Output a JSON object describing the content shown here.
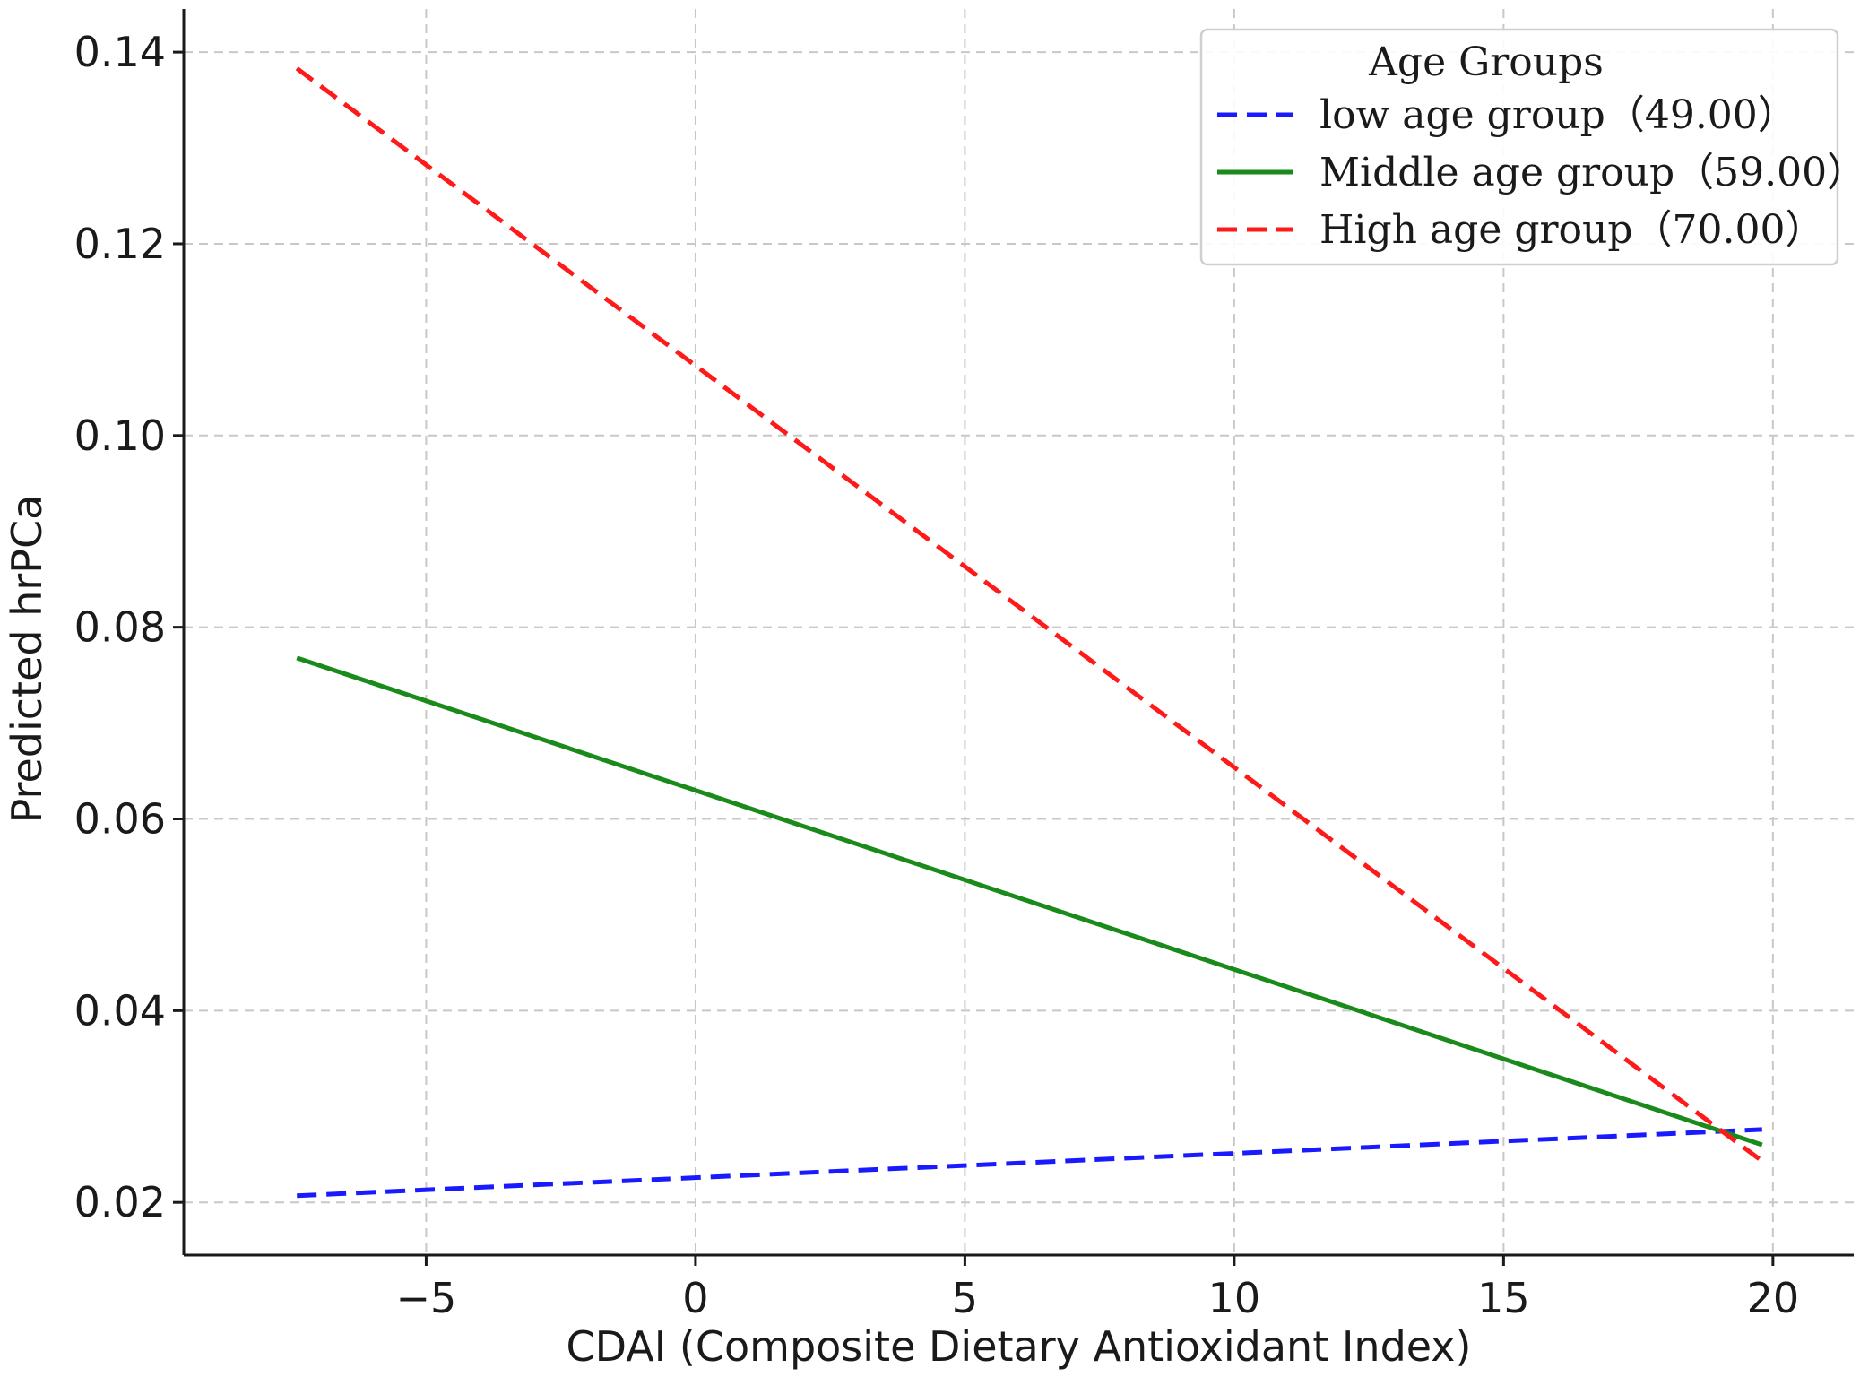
{
  "chart_data": {
    "type": "line",
    "title": "",
    "xlabel": "CDAI (Composite Dietary Antioxidant Index)",
    "ylabel": "Predicted hrPCa",
    "xlim": [
      -9.5,
      21.5
    ],
    "ylim": [
      0.0145,
      0.1445
    ],
    "xticks": [
      -5,
      0,
      5,
      10,
      15,
      20
    ],
    "xtick_labels": [
      "−5",
      "0",
      "5",
      "10",
      "15",
      "20"
    ],
    "yticks": [
      0.02,
      0.04,
      0.06,
      0.08,
      0.1,
      0.12,
      0.14
    ],
    "ytick_labels": [
      "0.02",
      "0.04",
      "0.06",
      "0.08",
      "0.10",
      "0.12",
      "0.14"
    ],
    "grid": true,
    "legend": {
      "title": "Age Groups",
      "position": "top-right"
    },
    "series": [
      {
        "name": "low age group（49.00）",
        "color": "#1a1aff",
        "style": "dashed",
        "x": [
          -7.4,
          19.8
        ],
        "y": [
          0.0207,
          0.0276
        ]
      },
      {
        "name": "Middle age group（59.00）",
        "color": "#1a8a1a",
        "style": "solid",
        "x": [
          -7.4,
          19.8
        ],
        "y": [
          0.0768,
          0.026
        ]
      },
      {
        "name": "High age group（70.00）",
        "color": "#ff1a1a",
        "style": "dashed",
        "x": [
          -7.4,
          19.8
        ],
        "y": [
          0.1383,
          0.0243
        ]
      }
    ]
  }
}
